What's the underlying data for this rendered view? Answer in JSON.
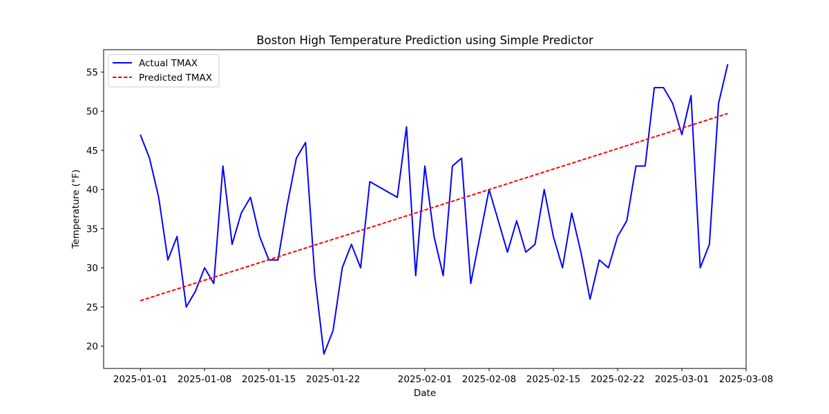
{
  "chart_data": {
    "type": "line",
    "title": "Boston High Temperature Prediction using Simple Predictor",
    "xlabel": "Date",
    "ylabel": "Temperature (°F)",
    "xlim": [
      "2024-12-28",
      "2025-03-08"
    ],
    "ylim": [
      17.15,
      57.85
    ],
    "x_ticks": [
      "2025-01-01",
      "2025-01-08",
      "2025-01-15",
      "2025-01-22",
      "2025-02-01",
      "2025-02-08",
      "2025-02-15",
      "2025-02-22",
      "2025-03-01",
      "2025-03-08"
    ],
    "y_ticks": [
      20,
      25,
      30,
      35,
      40,
      45,
      50,
      55
    ],
    "grid": false,
    "legend_position": "top-left",
    "series": [
      {
        "name": "Actual TMAX",
        "color": "#0000ff",
        "style": "solid",
        "points": [
          [
            "2025-01-01",
            47
          ],
          [
            "2025-01-02",
            44
          ],
          [
            "2025-01-03",
            39
          ],
          [
            "2025-01-04",
            31
          ],
          [
            "2025-01-05",
            34
          ],
          [
            "2025-01-06",
            25
          ],
          [
            "2025-01-07",
            27
          ],
          [
            "2025-01-08",
            30
          ],
          [
            "2025-01-09",
            28
          ],
          [
            "2025-01-10",
            43
          ],
          [
            "2025-01-11",
            33
          ],
          [
            "2025-01-12",
            37
          ],
          [
            "2025-01-13",
            39
          ],
          [
            "2025-01-14",
            34
          ],
          [
            "2025-01-15",
            31
          ],
          [
            "2025-01-16",
            31
          ],
          [
            "2025-01-17",
            38
          ],
          [
            "2025-01-18",
            44
          ],
          [
            "2025-01-19",
            46
          ],
          [
            "2025-01-20",
            29
          ],
          [
            "2025-01-21",
            19
          ],
          [
            "2025-01-22",
            22
          ],
          [
            "2025-01-23",
            30
          ],
          [
            "2025-01-24",
            33
          ],
          [
            "2025-01-25",
            30
          ],
          [
            "2025-01-26",
            41
          ],
          [
            "2025-01-29",
            39
          ],
          [
            "2025-01-30",
            48
          ],
          [
            "2025-01-31",
            29
          ],
          [
            "2025-02-01",
            43
          ],
          [
            "2025-02-02",
            34
          ],
          [
            "2025-02-03",
            29
          ],
          [
            "2025-02-04",
            43
          ],
          [
            "2025-02-05",
            44
          ],
          [
            "2025-02-06",
            28
          ],
          [
            "2025-02-07",
            34
          ],
          [
            "2025-02-08",
            40
          ],
          [
            "2025-02-09",
            36
          ],
          [
            "2025-02-10",
            32
          ],
          [
            "2025-02-11",
            36
          ],
          [
            "2025-02-12",
            32
          ],
          [
            "2025-02-13",
            33
          ],
          [
            "2025-02-14",
            40
          ],
          [
            "2025-02-15",
            34
          ],
          [
            "2025-02-16",
            30
          ],
          [
            "2025-02-17",
            37
          ],
          [
            "2025-02-18",
            32
          ],
          [
            "2025-02-19",
            26
          ],
          [
            "2025-02-20",
            31
          ],
          [
            "2025-02-21",
            30
          ],
          [
            "2025-02-22",
            34
          ],
          [
            "2025-02-23",
            36
          ],
          [
            "2025-02-24",
            43
          ],
          [
            "2025-02-25",
            43
          ],
          [
            "2025-02-26",
            53
          ],
          [
            "2025-02-27",
            53
          ],
          [
            "2025-02-28",
            51
          ],
          [
            "2025-03-01",
            47
          ],
          [
            "2025-03-02",
            52
          ],
          [
            "2025-03-03",
            30
          ],
          [
            "2025-03-04",
            33
          ],
          [
            "2025-03-05",
            51
          ],
          [
            "2025-03-06",
            56
          ]
        ]
      },
      {
        "name": "Predicted TMAX",
        "color": "#ff0000",
        "style": "dashed",
        "points": [
          [
            "2025-01-01",
            25.8
          ],
          [
            "2025-03-06",
            49.7
          ]
        ]
      }
    ]
  }
}
